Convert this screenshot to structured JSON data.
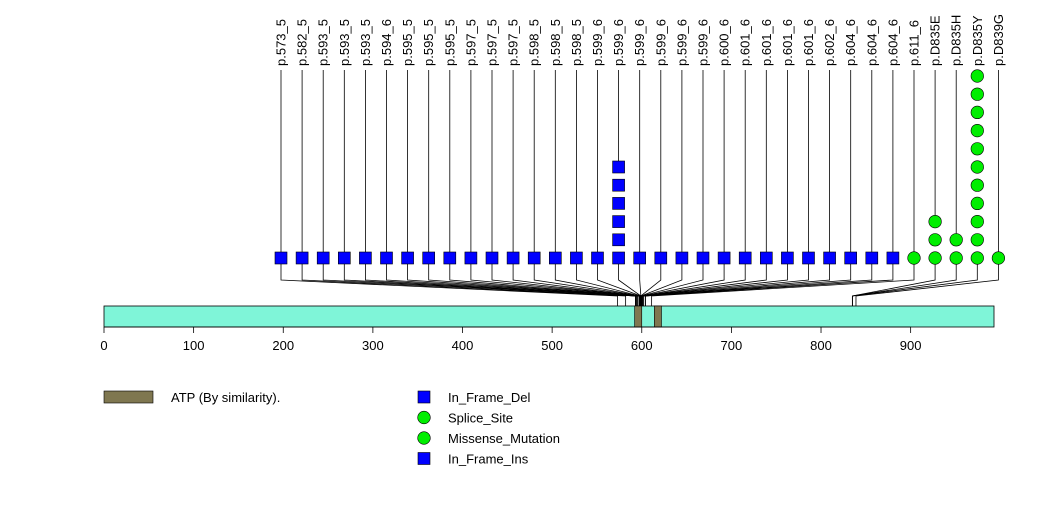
{
  "chart_data": {
    "type": "lollipop",
    "protein_length": 993,
    "axis": {
      "min": 0,
      "max": 993,
      "ticks": [
        0,
        100,
        200,
        300,
        400,
        500,
        600,
        700,
        800,
        900
      ]
    },
    "colors": {
      "protein_bar": "#7ff5d8",
      "domain": "#7f7750",
      "square": "#0000ff",
      "circle": "#00ee00"
    },
    "domains": [
      {
        "name": "ATP (By similarity).",
        "start": 592,
        "end": 600
      },
      {
        "name": "ATP (By similarity).",
        "start": 614,
        "end": 622
      }
    ],
    "mutations": [
      {
        "label": "p.573_5",
        "position": 573,
        "count": 1,
        "type": "In_Frame_Del"
      },
      {
        "label": "p.582_5",
        "position": 582,
        "count": 1,
        "type": "In_Frame_Del"
      },
      {
        "label": "p.593_5",
        "position": 593,
        "count": 1,
        "type": "In_Frame_Del"
      },
      {
        "label": "p.593_5",
        "position": 593,
        "count": 1,
        "type": "In_Frame_Del"
      },
      {
        "label": "p.593_5",
        "position": 593,
        "count": 1,
        "type": "In_Frame_Del"
      },
      {
        "label": "p.594_6",
        "position": 594,
        "count": 1,
        "type": "In_Frame_Del"
      },
      {
        "label": "p.595_5",
        "position": 595,
        "count": 1,
        "type": "In_Frame_Del"
      },
      {
        "label": "p.595_5",
        "position": 595,
        "count": 1,
        "type": "In_Frame_Del"
      },
      {
        "label": "p.595_5",
        "position": 595,
        "count": 1,
        "type": "In_Frame_Del"
      },
      {
        "label": "p.597_5",
        "position": 597,
        "count": 1,
        "type": "In_Frame_Del"
      },
      {
        "label": "p.597_5",
        "position": 597,
        "count": 1,
        "type": "In_Frame_Del"
      },
      {
        "label": "p.597_5",
        "position": 597,
        "count": 1,
        "type": "In_Frame_Del"
      },
      {
        "label": "p.598_5",
        "position": 598,
        "count": 1,
        "type": "In_Frame_Del"
      },
      {
        "label": "p.598_5",
        "position": 598,
        "count": 1,
        "type": "In_Frame_Del"
      },
      {
        "label": "p.598_5",
        "position": 598,
        "count": 1,
        "type": "In_Frame_Del"
      },
      {
        "label": "p.599_6",
        "position": 599,
        "count": 1,
        "type": "In_Frame_Del"
      },
      {
        "label": "p.599_6",
        "position": 599,
        "count": 6,
        "type": "In_Frame_Del"
      },
      {
        "label": "p.599_6",
        "position": 599,
        "count": 1,
        "type": "In_Frame_Del"
      },
      {
        "label": "p.599_6",
        "position": 599,
        "count": 1,
        "type": "In_Frame_Del"
      },
      {
        "label": "p.599_6",
        "position": 599,
        "count": 1,
        "type": "In_Frame_Del"
      },
      {
        "label": "p.599_6",
        "position": 599,
        "count": 1,
        "type": "In_Frame_Del"
      },
      {
        "label": "p.600_6",
        "position": 600,
        "count": 1,
        "type": "In_Frame_Del"
      },
      {
        "label": "p.601_6",
        "position": 601,
        "count": 1,
        "type": "In_Frame_Del"
      },
      {
        "label": "p.601_6",
        "position": 601,
        "count": 1,
        "type": "In_Frame_Del"
      },
      {
        "label": "p.601_6",
        "position": 601,
        "count": 1,
        "type": "In_Frame_Del"
      },
      {
        "label": "p.601_6",
        "position": 601,
        "count": 1,
        "type": "In_Frame_Del"
      },
      {
        "label": "p.602_6",
        "position": 602,
        "count": 1,
        "type": "In_Frame_Del"
      },
      {
        "label": "p.604_6",
        "position": 604,
        "count": 1,
        "type": "In_Frame_Del"
      },
      {
        "label": "p.604_6",
        "position": 604,
        "count": 1,
        "type": "In_Frame_Del"
      },
      {
        "label": "p.604_6",
        "position": 604,
        "count": 1,
        "type": "In_Frame_Ins"
      },
      {
        "label": "p.611_6",
        "position": 611,
        "count": 1,
        "type": "Splice_Site"
      },
      {
        "label": "p.D835E",
        "position": 835,
        "count": 3,
        "type": "Missense_Mutation"
      },
      {
        "label": "p.D835H",
        "position": 835,
        "count": 2,
        "type": "Missense_Mutation"
      },
      {
        "label": "p.D835Y",
        "position": 835,
        "count": 11,
        "type": "Missense_Mutation"
      },
      {
        "label": "p.D839G",
        "position": 839,
        "count": 1,
        "type": "Missense_Mutation"
      }
    ],
    "legend": {
      "domains": [
        {
          "label": "ATP (By similarity)."
        }
      ],
      "mutation_types": [
        {
          "label": "In_Frame_Del",
          "shape": "square",
          "color": "#0000ff"
        },
        {
          "label": "Splice_Site",
          "shape": "circle",
          "color": "#00ee00"
        },
        {
          "label": "Missense_Mutation",
          "shape": "circle",
          "color": "#00ee00"
        },
        {
          "label": "In_Frame_Ins",
          "shape": "square",
          "color": "#0000ff"
        }
      ]
    }
  }
}
